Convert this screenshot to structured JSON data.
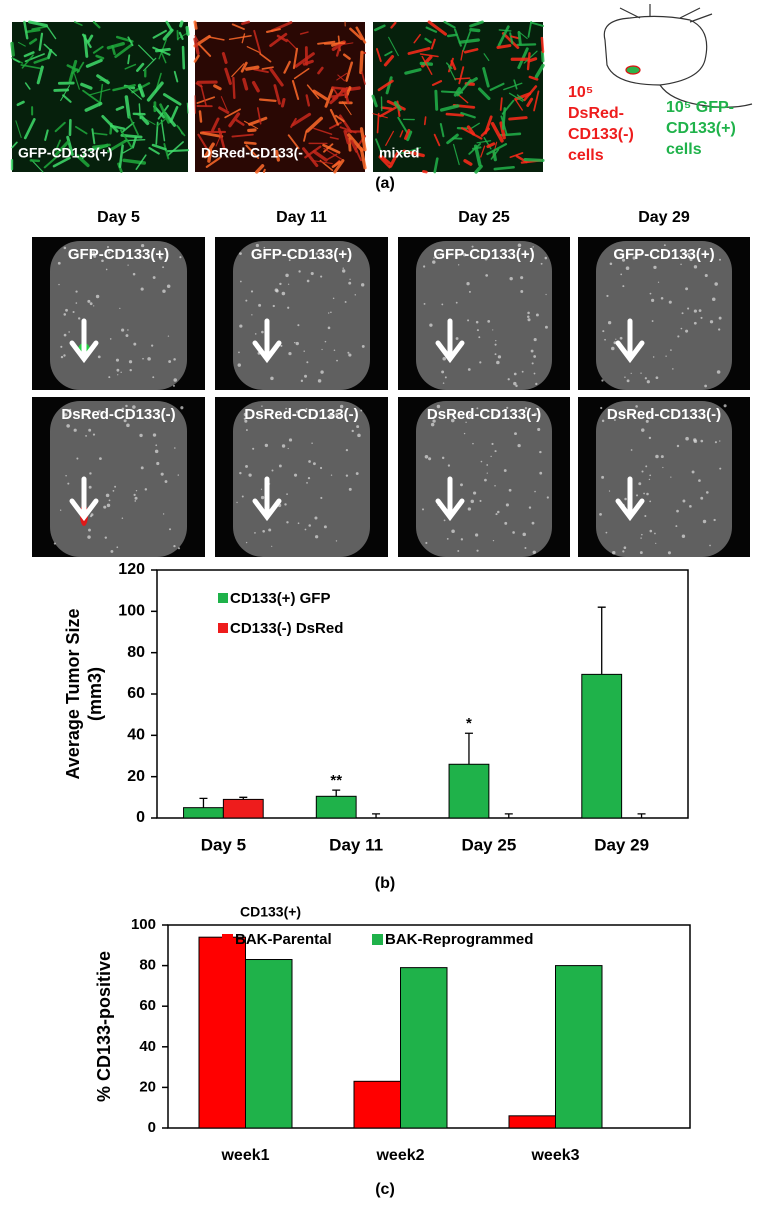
{
  "panel_a": {
    "images": [
      {
        "label": "GFP-CD133(+)"
      },
      {
        "label": "DsRed-CD133(-"
      },
      {
        "label": "mixed"
      }
    ],
    "mouse": {
      "red_label": [
        "10⁵",
        "DsRed-",
        "CD133(-)",
        "cells"
      ],
      "green_label": [
        "10⁵  GFP-",
        "CD133(+)",
        "cells"
      ]
    },
    "caption": "(a)"
  },
  "imaging": {
    "days": [
      "Day 5",
      "Day 11",
      "Day 25",
      "Day 29"
    ],
    "rows": [
      "GFP-CD133(+)",
      "DsRed-CD133(-)"
    ]
  },
  "chart_data": [
    {
      "type": "bar",
      "ylabel": [
        "Average Tumor Size",
        "(mm3)"
      ],
      "categories": [
        "Day 5",
        "Day  11",
        "Day  25",
        "Day 29"
      ],
      "series": [
        {
          "name": "CD133(+) GFP",
          "color": "#1fb24a",
          "values": [
            5,
            10.5,
            26,
            69.5
          ],
          "errors": [
            4.5,
            3,
            15,
            32.5
          ],
          "value_annotations": [
            null,
            "**",
            "*",
            null
          ]
        },
        {
          "name": "CD133(-) DsRed",
          "color": "#ee1c1c",
          "values": [
            9,
            0,
            0,
            0
          ],
          "errors": [
            1,
            2,
            2,
            2
          ]
        }
      ],
      "ylim": [
        0,
        120
      ],
      "yticks": [
        0,
        20,
        40,
        60,
        80,
        100,
        120
      ],
      "legend": "top-left",
      "caption": "(b)"
    },
    {
      "type": "bar",
      "ylabel": [
        "% CD133-positive"
      ],
      "categories": [
        "week1",
        "week2",
        "week3"
      ],
      "legend_title": "CD133(+)",
      "series": [
        {
          "name": "BAK-Parental",
          "color": "#ff0000",
          "values": [
            94,
            23,
            6
          ]
        },
        {
          "name": "BAK-Reprogrammed",
          "color": "#1fb24a",
          "values": [
            83,
            79,
            80
          ]
        }
      ],
      "ylim": [
        0,
        100
      ],
      "yticks": [
        0,
        20,
        40,
        60,
        80,
        100
      ],
      "legend": "top",
      "caption": "(c)"
    }
  ]
}
